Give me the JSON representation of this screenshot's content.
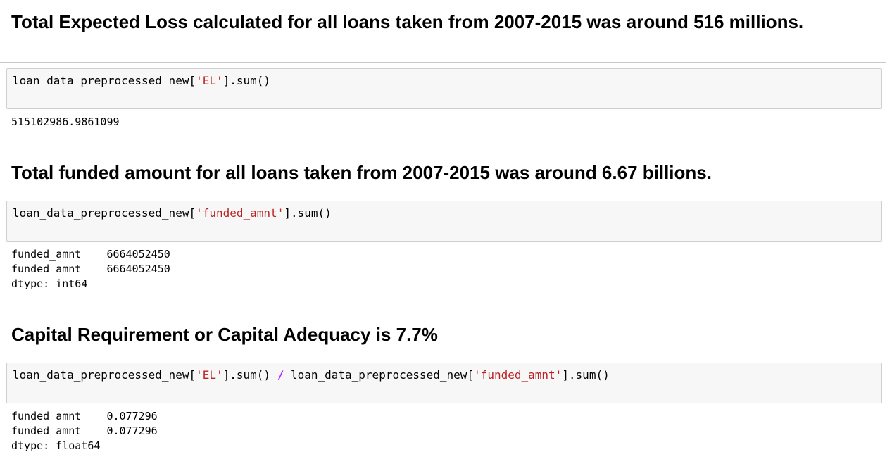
{
  "cells": [
    {
      "type": "markdown",
      "heading": "Total Expected Loss calculated for all loans taken from 2007-2015 was around 516 millions."
    },
    {
      "type": "code",
      "code": [
        {
          "text": "loan_data_preprocessed_new[",
          "kind": "plain"
        },
        {
          "text": "'EL'",
          "kind": "string"
        },
        {
          "text": "].sum()",
          "kind": "plain"
        }
      ]
    },
    {
      "type": "output",
      "lines": [
        "515102986.9861099"
      ]
    },
    {
      "type": "markdown",
      "heading": "Total funded amount for all loans taken from 2007-2015 was around 6.67 billions."
    },
    {
      "type": "code",
      "code": [
        {
          "text": "loan_data_preprocessed_new[",
          "kind": "plain"
        },
        {
          "text": "'funded_amnt'",
          "kind": "string"
        },
        {
          "text": "].sum()",
          "kind": "plain"
        }
      ]
    },
    {
      "type": "output",
      "lines": [
        "funded_amnt    6664052450",
        "funded_amnt    6664052450",
        "dtype: int64"
      ]
    },
    {
      "type": "markdown",
      "heading": "Capital Requirement or Capital Adequacy is 7.7%"
    },
    {
      "type": "code",
      "code": [
        {
          "text": "loan_data_preprocessed_new[",
          "kind": "plain"
        },
        {
          "text": "'EL'",
          "kind": "string"
        },
        {
          "text": "].sum() ",
          "kind": "plain"
        },
        {
          "text": "/",
          "kind": "operator"
        },
        {
          "text": " loan_data_preprocessed_new[",
          "kind": "plain"
        },
        {
          "text": "'funded_amnt'",
          "kind": "string"
        },
        {
          "text": "].sum()",
          "kind": "plain"
        }
      ]
    },
    {
      "type": "output",
      "lines": [
        "funded_amnt    0.077296",
        "funded_amnt    0.077296",
        "dtype: float64"
      ]
    }
  ]
}
